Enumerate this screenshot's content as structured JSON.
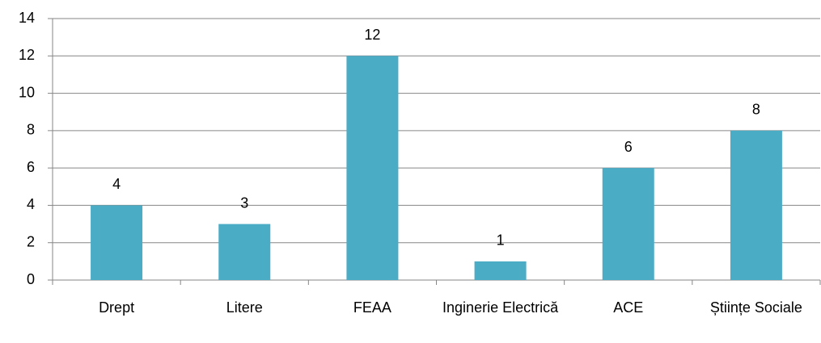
{
  "chart_data": {
    "type": "bar",
    "categories": [
      "Drept",
      "Litere",
      "FEAA",
      "Inginerie Electrică",
      "ACE",
      "Științe Sociale"
    ],
    "values": [
      4,
      3,
      12,
      1,
      6,
      8
    ],
    "color": "#4bacc6",
    "ylim": [
      0,
      14
    ],
    "yticks": [
      0,
      2,
      4,
      6,
      8,
      10,
      12,
      14
    ],
    "grid": true
  }
}
